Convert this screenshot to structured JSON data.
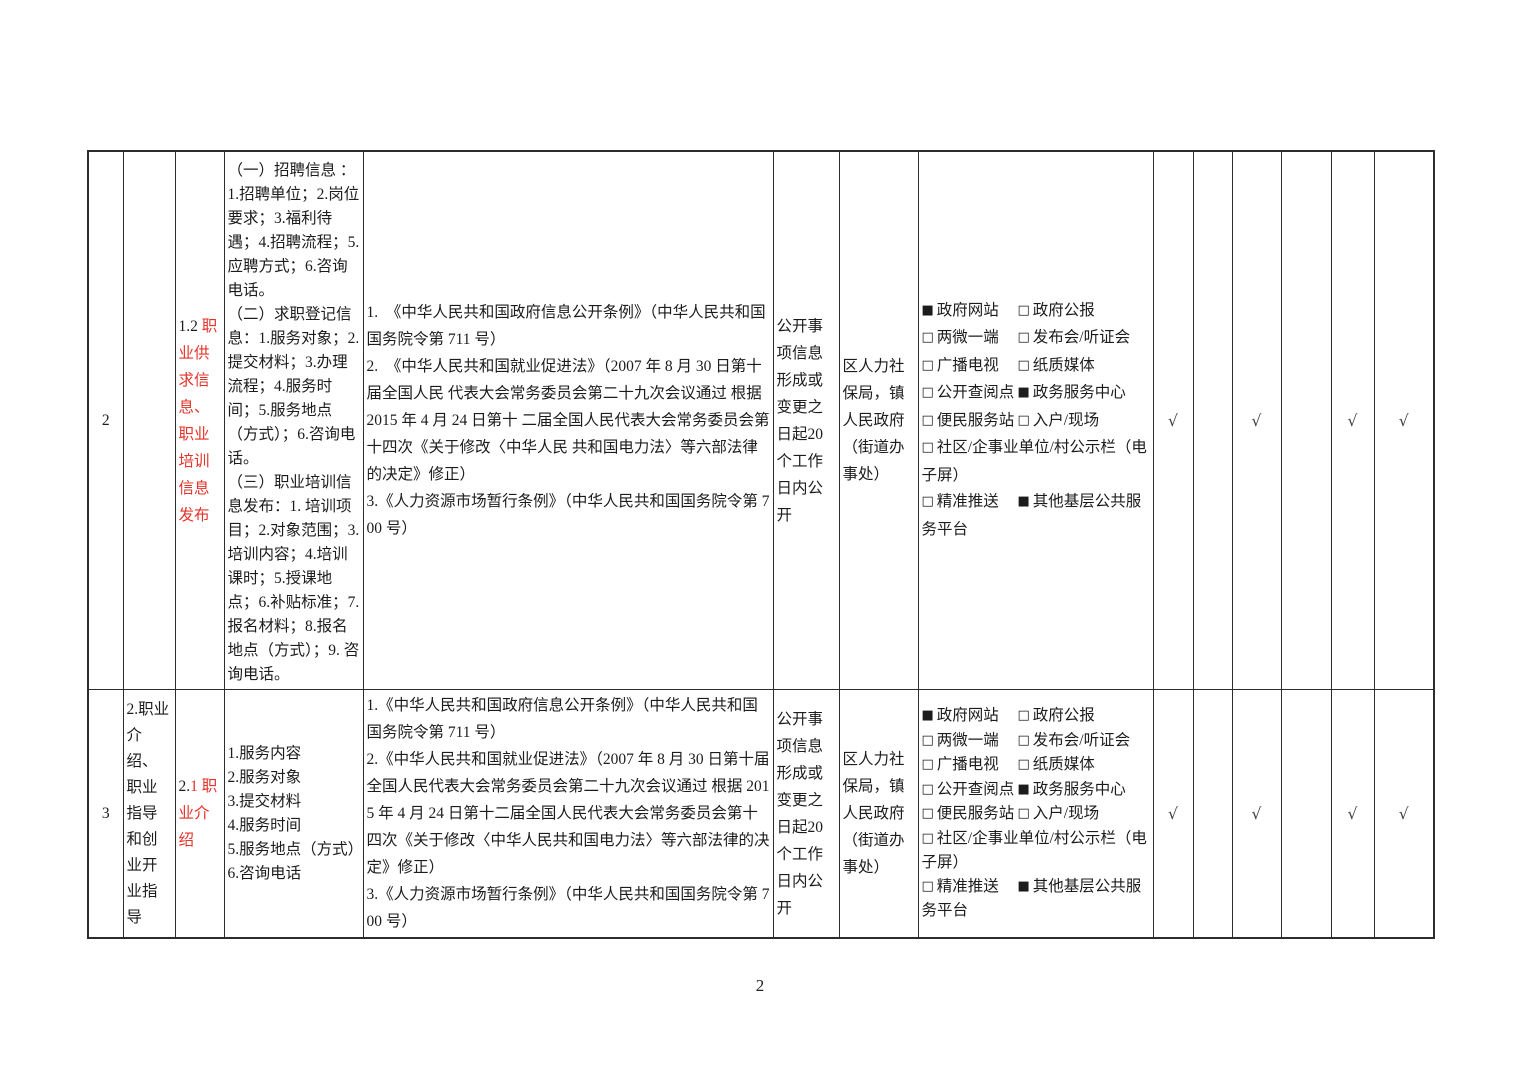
{
  "page": {
    "number": "2"
  },
  "colors": {
    "red": "#e5332a",
    "border": "#2d2d2d"
  },
  "icons": {
    "checked": "■",
    "unchecked": "□",
    "checkmark": "√"
  },
  "table": {
    "rows": [
      {
        "no": "2",
        "category": "",
        "item": {
          "prefix": "1.2 ",
          "name": "职业供求信息、职业培训信息发布"
        },
        "content_paragraphs": [
          "（一）招聘信息 ：1.招聘单位；2.岗位要求；3.福利待遇；4.招聘流程；5.应聘方式；6.咨询电话。",
          "（二）求职登记信息：1.服务对象；2.提交材料；3.办理流程；4.服务时间；5.服务地点（方式）；6.咨询电话。",
          "（三）职业培训信息发布：1. 培训项目；2.对象范围；3.培训内容；4.培训课时；5.授课地点；6.补贴标准；7.报名材料；8.报名地点（方式）；9. 咨询电话。"
        ],
        "legal_basis": [
          "1.　《中华人民共和国政府信息公开条例》（中华人民共和国国务院令第 711 号）",
          "2.　《中华人民共和国就业促进法》（2007 年 8 月 30 日第十届全国人民 代表大会常务委员会第二十九次会议通过 根据 2015 年 4 月 24 日第十 二届全国人民代表大会常务委员会第十四次《关于修改〈中华人民 共和国电力法〉等六部法律的决定》修正）",
          "3.《人力资源市场暂行条例》（中华人民共和国国务院令第 700 号）"
        ],
        "time_limit": "公开事项信息形成或变更之日起20个工作日内公开",
        "agency": "区人力社保局，镇人民政府（街道办事处）",
        "channels": [
          {
            "cells": [
              {
                "checked": true,
                "label": "政府网站"
              },
              {
                "checked": false,
                "label": "政府公报"
              }
            ]
          },
          {
            "cells": [
              {
                "checked": false,
                "label": "两微一端"
              },
              {
                "checked": false,
                "label": "发布会/听证会"
              }
            ]
          },
          {
            "cells": [
              {
                "checked": false,
                "label": "广播电视"
              },
              {
                "checked": false,
                "label": "纸质媒体"
              }
            ]
          },
          {
            "cells": [
              {
                "checked": false,
                "label": "公开查阅点"
              },
              {
                "checked": true,
                "label": "政务服务中心"
              }
            ]
          },
          {
            "cells": [
              {
                "checked": false,
                "label": "便民服务站"
              },
              {
                "checked": false,
                "label": "入户/现场"
              }
            ]
          },
          {
            "cells": [
              {
                "checked": false,
                "label": "社区/企事业单位/村公示栏（电子屏）"
              }
            ]
          },
          {
            "cells": [
              {
                "checked": false,
                "label": "精准推送"
              },
              {
                "checked": true,
                "label": "其他基层公共服务平台"
              }
            ]
          }
        ],
        "marks": [
          "√",
          "",
          "√",
          "",
          "√",
          "√"
        ]
      },
      {
        "no": "3",
        "category": "2.职业介绍、职业指导和创业开业指导",
        "item": {
          "prefix": "2.",
          "name": "1 职业介绍"
        },
        "content_lines": [
          "1.服务内容",
          "2.服务对象",
          "3.提交材料",
          "4.服务时间",
          "5.服务地点（方式）",
          "6.咨询电话"
        ],
        "legal_basis": [
          "1.《中华人民共和国政府信息公开条例》（中华人民共和国国务院令第 711 号）",
          "2.《中华人民共和国就业促进法》（2007 年 8 月 30 日第十届全国人民代表大会常务委员会第二十九次会议通过 根据 2015 年 4 月 24 日第十二届全国人民代表大会常务委员会第十四次《关于修改〈中华人民共和国电力法〉等六部法律的决定》修正）",
          "3.《人力资源市场暂行条例》（中华人民共和国国务院令第 700 号）"
        ],
        "time_limit": "公开事项信息形成或变更之日起20个工作日内公开",
        "agency": "区人力社保局，镇人民政府（街道办事处）",
        "channels": [
          {
            "cells": [
              {
                "checked": true,
                "label": "政府网站"
              },
              {
                "checked": false,
                "label": "政府公报"
              }
            ]
          },
          {
            "cells": [
              {
                "checked": false,
                "label": "两微一端"
              },
              {
                "checked": false,
                "label": "发布会/听证会"
              }
            ]
          },
          {
            "cells": [
              {
                "checked": false,
                "label": "广播电视"
              },
              {
                "checked": false,
                "label": "纸质媒体"
              }
            ]
          },
          {
            "cells": [
              {
                "checked": false,
                "label": "公开查阅点"
              },
              {
                "checked": true,
                "label": "政务服务中心"
              }
            ]
          },
          {
            "cells": [
              {
                "checked": false,
                "label": "便民服务站"
              },
              {
                "checked": false,
                "label": "入户/现场"
              }
            ]
          },
          {
            "cells": [
              {
                "checked": false,
                "label": "社区/企事业单位/村公示栏（电子屏）"
              }
            ]
          },
          {
            "cells": [
              {
                "checked": false,
                "label": "精准推送"
              },
              {
                "checked": true,
                "label": "其他基层公共服务平台"
              }
            ]
          }
        ],
        "marks": [
          "√",
          "",
          "√",
          "",
          "√",
          "√"
        ]
      }
    ]
  }
}
